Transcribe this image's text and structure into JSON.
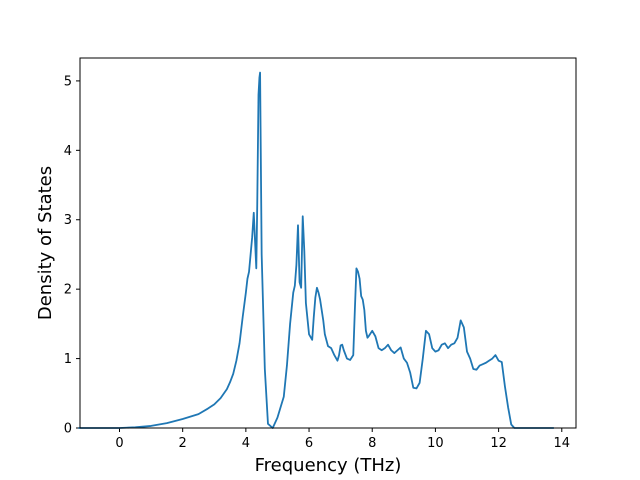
{
  "chart_data": {
    "type": "line",
    "title": "",
    "xlabel": "Frequency (THz)",
    "ylabel": "Density of States",
    "xlim": [
      -1.25,
      14.45
    ],
    "ylim": [
      0,
      5.33
    ],
    "x_ticks": [
      0,
      2,
      4,
      6,
      8,
      10,
      12,
      14
    ],
    "y_ticks": [
      0,
      1,
      2,
      3,
      4,
      5
    ],
    "grid": false,
    "line_color": "#1f77b4",
    "series": [
      {
        "x": [
          -1.3,
          -1.0,
          -0.5,
          0.0,
          0.5,
          1.0,
          1.5,
          2.0,
          2.5,
          2.8,
          3.0,
          3.2,
          3.4,
          3.5,
          3.6,
          3.7,
          3.8,
          3.9,
          4.0,
          4.05,
          4.1,
          4.2,
          4.25,
          4.3,
          4.33,
          4.36,
          4.4,
          4.43,
          4.45,
          4.5,
          4.6,
          4.7,
          4.85,
          5.0,
          5.1,
          5.2,
          5.3,
          5.4,
          5.5,
          5.55,
          5.6,
          5.65,
          5.7,
          5.75,
          5.8,
          5.85,
          5.9,
          6.0,
          6.1,
          6.15,
          6.2,
          6.25,
          6.3,
          6.35,
          6.4,
          6.45,
          6.5,
          6.6,
          6.7,
          6.8,
          6.9,
          6.95,
          7.0,
          7.05,
          7.1,
          7.2,
          7.3,
          7.4,
          7.45,
          7.5,
          7.55,
          7.6,
          7.65,
          7.7,
          7.75,
          7.8,
          7.85,
          7.9,
          8.0,
          8.1,
          8.2,
          8.3,
          8.4,
          8.5,
          8.6,
          8.7,
          8.8,
          8.9,
          9.0,
          9.1,
          9.2,
          9.3,
          9.4,
          9.5,
          9.6,
          9.7,
          9.8,
          9.9,
          10.0,
          10.1,
          10.2,
          10.3,
          10.4,
          10.5,
          10.6,
          10.7,
          10.8,
          10.9,
          11.0,
          11.1,
          11.2,
          11.3,
          11.4,
          11.5,
          11.6,
          11.7,
          11.8,
          11.9,
          12.0,
          12.1,
          12.2,
          12.3,
          12.4,
          12.5,
          12.6,
          12.8,
          13.0,
          13.5,
          13.75
        ],
        "y": [
          0.0,
          0.0,
          0.0,
          0.0,
          0.01,
          0.03,
          0.07,
          0.13,
          0.2,
          0.28,
          0.34,
          0.43,
          0.56,
          0.66,
          0.78,
          0.97,
          1.22,
          1.6,
          1.95,
          2.15,
          2.25,
          2.75,
          3.1,
          2.6,
          2.3,
          3.2,
          4.8,
          5.05,
          5.12,
          2.5,
          0.85,
          0.06,
          0.0,
          0.15,
          0.3,
          0.45,
          0.9,
          1.5,
          1.95,
          2.05,
          2.35,
          2.92,
          2.1,
          2.02,
          3.05,
          2.55,
          1.8,
          1.35,
          1.27,
          1.6,
          1.88,
          2.02,
          1.95,
          1.85,
          1.7,
          1.55,
          1.35,
          1.18,
          1.15,
          1.05,
          0.97,
          1.05,
          1.19,
          1.2,
          1.12,
          1.0,
          0.98,
          1.05,
          1.7,
          2.3,
          2.25,
          2.15,
          1.9,
          1.85,
          1.7,
          1.4,
          1.3,
          1.33,
          1.4,
          1.32,
          1.15,
          1.12,
          1.15,
          1.2,
          1.12,
          1.08,
          1.12,
          1.16,
          1.0,
          0.94,
          0.8,
          0.58,
          0.57,
          0.65,
          1.0,
          1.4,
          1.35,
          1.15,
          1.1,
          1.12,
          1.2,
          1.22,
          1.15,
          1.2,
          1.22,
          1.3,
          1.55,
          1.45,
          1.1,
          1.0,
          0.85,
          0.84,
          0.9,
          0.92,
          0.94,
          0.97,
          1.0,
          1.05,
          0.97,
          0.95,
          0.6,
          0.3,
          0.05,
          0.0,
          0.0,
          0.0,
          0.0,
          0.0,
          0.0
        ]
      }
    ]
  }
}
